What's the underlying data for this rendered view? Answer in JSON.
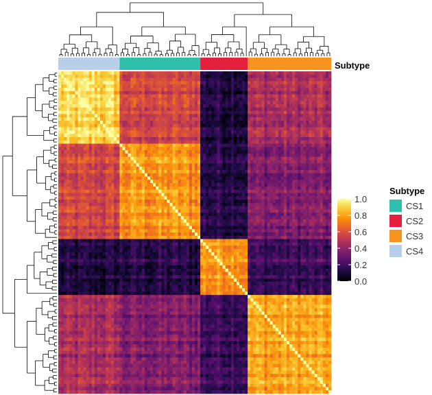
{
  "chart_data": {
    "type": "heatmap",
    "title": "",
    "xlabel": "",
    "ylabel": "",
    "annotation_track": {
      "name": "Subtype",
      "segments": [
        {
          "label": "CS4",
          "count": 22
        },
        {
          "label": "CS1",
          "count": 29
        },
        {
          "label": "CS2",
          "count": 17
        },
        {
          "label": "CS3",
          "count": 30
        }
      ]
    },
    "block_mean_similarity": {
      "order": [
        "CS4",
        "CS1",
        "CS2",
        "CS3"
      ],
      "matrix": [
        [
          0.85,
          0.55,
          0.12,
          0.45
        ],
        [
          0.55,
          0.72,
          0.15,
          0.35
        ],
        [
          0.12,
          0.15,
          0.75,
          0.2
        ],
        [
          0.45,
          0.35,
          0.2,
          0.75
        ]
      ]
    },
    "colorbar": {
      "min": 0.0,
      "max": 1.0,
      "ticks": [
        "0.0",
        "0.2",
        "0.4",
        "0.6",
        "0.8",
        "1.0"
      ],
      "colormap": "inferno"
    },
    "legend": {
      "title": "Subtype",
      "position": "right",
      "entries": [
        {
          "label": "CS1",
          "color": "#2fbfad"
        },
        {
          "label": "CS2",
          "color": "#e4203f"
        },
        {
          "label": "CS3",
          "color": "#f7941d"
        },
        {
          "label": "CS4",
          "color": "#b7cfe9"
        }
      ]
    },
    "dendrograms": {
      "top": true,
      "left": true
    }
  }
}
